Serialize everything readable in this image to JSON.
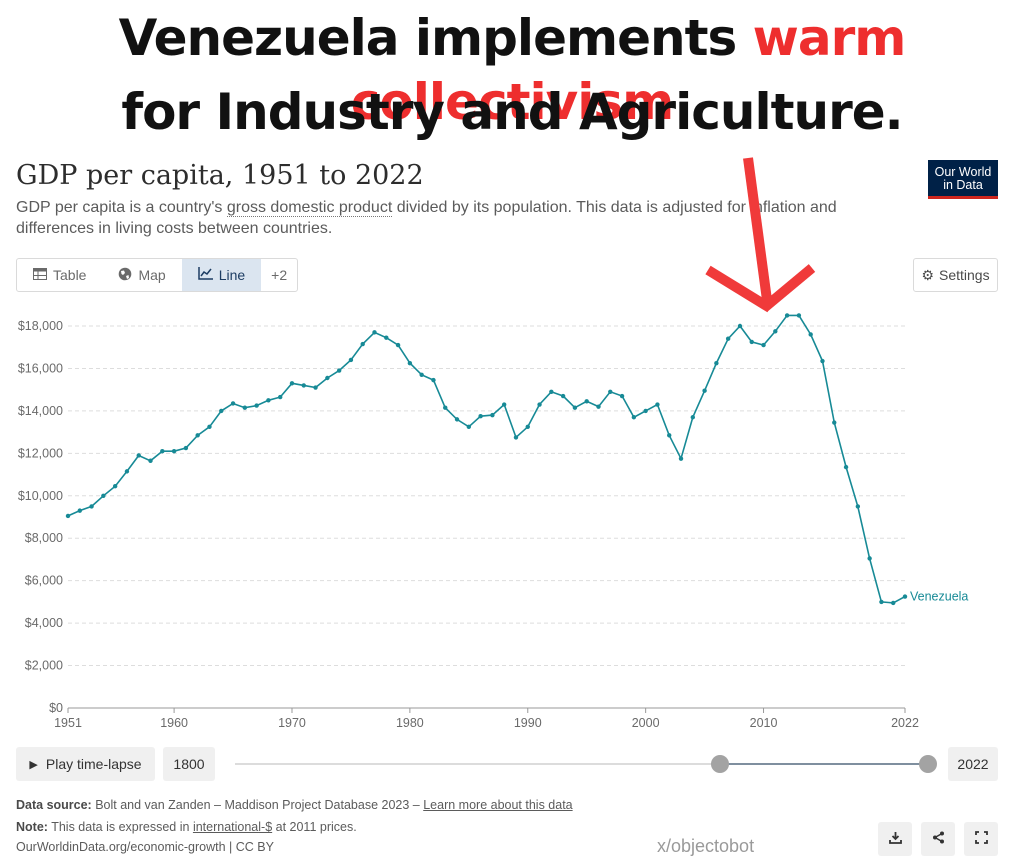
{
  "meme": {
    "line1_a": "Venezuela implements ",
    "line1_b": "warm collectivism",
    "line2": "for Industry and Agriculture.",
    "highlight_color": "#ee2e2e",
    "arrow_color": "#f03a3a"
  },
  "header": {
    "title": "GDP per capita, 1951 to 2022",
    "subtitle_a": "GDP per capita is a country's ",
    "subtitle_link": "gross domestic product",
    "subtitle_b": " divided by its population. This data is adjusted for inflation and differences in living costs between countries.",
    "logo_line1": "Our World",
    "logo_line2": "in Data"
  },
  "tabs": [
    {
      "label": "Table",
      "icon": "table-icon"
    },
    {
      "label": "Map",
      "icon": "globe-icon"
    },
    {
      "label": "Line",
      "icon": "line-chart-icon",
      "active": true
    },
    {
      "label": "+2"
    }
  ],
  "settings_label": "Settings",
  "chart_data": {
    "type": "line",
    "ylim": [
      0,
      18000
    ],
    "yticks": [
      0,
      2000,
      4000,
      6000,
      8000,
      10000,
      12000,
      14000,
      16000,
      18000
    ],
    "ytick_labels": [
      "$0",
      "$2,000",
      "$4,000",
      "$6,000",
      "$8,000",
      "$10,000",
      "$12,000",
      "$14,000",
      "$16,000",
      "$18,000"
    ],
    "xlim": [
      1951,
      2022
    ],
    "xticks": [
      1951,
      1960,
      1970,
      1980,
      1990,
      2000,
      2010,
      2022
    ],
    "grid": "horizontal-dashed",
    "line_color": "#178a96",
    "series": [
      {
        "name": "Venezuela",
        "x": [
          1951,
          1952,
          1953,
          1954,
          1955,
          1956,
          1957,
          1958,
          1959,
          1960,
          1961,
          1962,
          1963,
          1964,
          1965,
          1966,
          1967,
          1968,
          1969,
          1970,
          1971,
          1972,
          1973,
          1974,
          1975,
          1976,
          1977,
          1978,
          1979,
          1980,
          1981,
          1982,
          1983,
          1984,
          1985,
          1986,
          1987,
          1988,
          1989,
          1990,
          1991,
          1992,
          1993,
          1994,
          1995,
          1996,
          1997,
          1998,
          1999,
          2000,
          2001,
          2002,
          2003,
          2004,
          2005,
          2006,
          2007,
          2008,
          2009,
          2010,
          2011,
          2012,
          2013,
          2014,
          2015,
          2016,
          2017,
          2018,
          2019,
          2020,
          2021,
          2022
        ],
        "y": [
          9050,
          9300,
          9500,
          10000,
          10450,
          11150,
          11900,
          11650,
          12100,
          12100,
          12250,
          12850,
          13250,
          14000,
          14350,
          14150,
          14250,
          14500,
          14650,
          15300,
          15200,
          15100,
          15550,
          15900,
          16400,
          17150,
          17700,
          17450,
          17100,
          16250,
          15700,
          15450,
          14150,
          13600,
          13250,
          13750,
          13800,
          14300,
          12750,
          13250,
          14300,
          14900,
          14700,
          14150,
          14450,
          14200,
          14900,
          14700,
          13700,
          14000,
          14300,
          12850,
          11750,
          13700,
          14950,
          16250,
          17400,
          18000,
          17250,
          17100,
          17750,
          18500,
          18500,
          17600,
          16350,
          13450,
          11350,
          9500,
          7050,
          5000,
          4950,
          5250
        ]
      }
    ]
  },
  "timeline": {
    "play_label": "Play time-lapse",
    "start_year": "1800",
    "end_year": "2022",
    "range_start": 0.7,
    "range_end": 1.0
  },
  "footer": {
    "source_label": "Data source:",
    "source_text": " Bolt and van Zanden – Maddison Project Database 2023 – ",
    "source_link": "Learn more about this data",
    "note_label": "Note:",
    "note_a": " This data is expressed in ",
    "note_link": "international-$",
    "note_b": " at 2011 prices.",
    "url_line": "OurWorldinData.org/economic-growth | CC BY"
  },
  "watermark": "x/objectobot"
}
